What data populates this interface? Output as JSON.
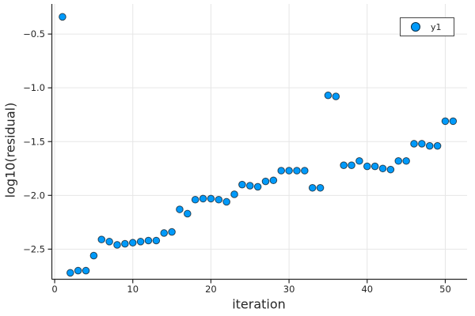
{
  "chart_data": {
    "type": "scatter",
    "title": "",
    "xlabel": "iteration",
    "ylabel": "log10(residual)",
    "grid": true,
    "xlim": [
      -0.36,
      52.79
    ],
    "ylim": [
      -2.78,
      -0.22
    ],
    "xticks": {
      "values": [
        0,
        10,
        20,
        30,
        40,
        50
      ],
      "labels": [
        "0",
        "10",
        "20",
        "30",
        "40",
        "50"
      ]
    },
    "yticks": {
      "values": [
        -0.5,
        -1.0,
        -1.5,
        -2.0,
        -2.5
      ],
      "labels": [
        "−0.5",
        "−1.0",
        "−1.5",
        "−2.0",
        "−2.5"
      ]
    },
    "legend": {
      "position": "top-right",
      "entries": [
        {
          "label": "y1",
          "marker_color": "#009AFA"
        }
      ]
    },
    "x": [
      1,
      2,
      3,
      4,
      5,
      6,
      7,
      8,
      9,
      10,
      11,
      12,
      13,
      14,
      15,
      16,
      17,
      18,
      19,
      20,
      21,
      22,
      23,
      24,
      25,
      26,
      27,
      28,
      29,
      30,
      31,
      32,
      33,
      34,
      35,
      36,
      37,
      38,
      39,
      40,
      41,
      42,
      43,
      44,
      45,
      46,
      47,
      48,
      49,
      50,
      51
    ],
    "series": [
      {
        "name": "y1",
        "values": [
          -0.34,
          -2.72,
          -2.7,
          -2.7,
          -2.56,
          -2.41,
          -2.43,
          -2.46,
          -2.45,
          -2.44,
          -2.43,
          -2.42,
          -2.42,
          -2.35,
          -2.34,
          -2.13,
          -2.17,
          -2.04,
          -2.03,
          -2.03,
          -2.04,
          -2.06,
          -1.99,
          -1.9,
          -1.91,
          -1.92,
          -1.87,
          -1.86,
          -1.77,
          -1.77,
          -1.77,
          -1.77,
          -1.93,
          -1.93,
          -1.07,
          -1.08,
          -1.72,
          -1.72,
          -1.68,
          -1.73,
          -1.73,
          -1.75,
          -1.76,
          -1.68,
          -1.68,
          -1.52,
          -1.52,
          -1.54,
          -1.54,
          -1.31,
          -1.31
        ]
      }
    ],
    "colors": {
      "marker_fill": "#009AFA",
      "marker_stroke": "rgba(0,0,0,0.65)",
      "grid": "#E6E6E6",
      "axis": "#262626",
      "text": "#262626",
      "legend_border": "#454545",
      "background": "#FFFFFF"
    }
  }
}
